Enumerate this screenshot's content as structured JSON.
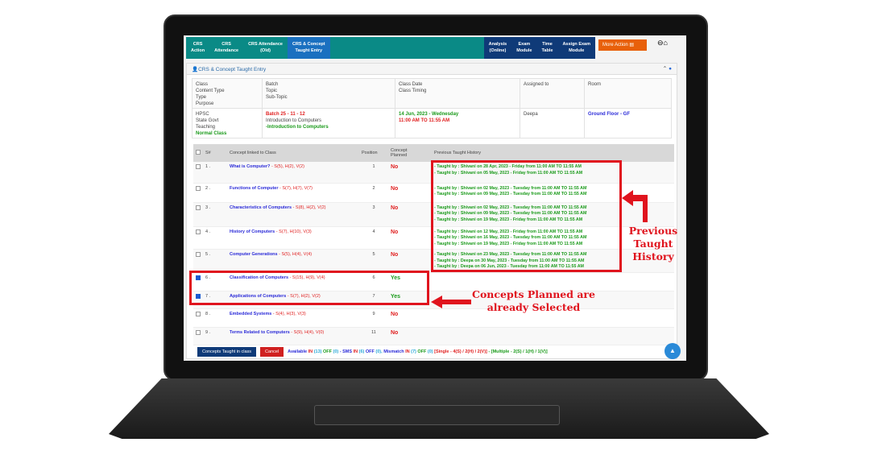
{
  "nav": {
    "items": [
      "CRS\nAction",
      "CRS\nAttendance",
      "CRS Attendance\n(Old)",
      "CRS & Concept\nTaught Entry"
    ],
    "right_items": [
      "Analysis\n(Online)",
      "Exam\nModule",
      "Time\nTable",
      "Assign Exam\nModule"
    ],
    "more_action": "More Action"
  },
  "panel": {
    "title": "CRS & Concept Taught Entry"
  },
  "info": {
    "headers": [
      "Class\nContent Type\nType\nPurpose",
      "Batch\nTopic\nSub-Topic",
      "Class Date\nClass Timing",
      "Assigned to",
      "Room"
    ],
    "class": [
      "HPSC",
      "State Govt",
      "Teaching"
    ],
    "purpose": "Normal Class",
    "batch": "Batch 25 - 11 - 12",
    "topic": "Introduction to Computers",
    "subtopic": "-Introduction to Computers",
    "date": "14 Jun, 2023 - Wednesday",
    "timing": "11:00 AM TO 11:55 AM",
    "assigned": "Deepa",
    "room": "Ground Floor - GF"
  },
  "table": {
    "headers": [
      "S#",
      "Concept linked to Class",
      "Position",
      "Concept\nPlanned",
      "Previous Taught History"
    ],
    "rows": [
      {
        "sn": "1 .",
        "concept": "What is Computer?",
        "shv": " - S(5), H(2), V(2)",
        "pos": "1",
        "planned": "No",
        "checked": false,
        "history": [
          "- Taught by : Shivani on 28 Apr, 2023 - Friday from 11:00 AM TO 11:55 AM",
          "- Taught by : Shivani on 05 May, 2023 - Friday from 11:00 AM TO 11:55 AM"
        ]
      },
      {
        "sn": "2 .",
        "concept": "Functions of Computer",
        "shv": " - S(7), H(7), V(7)",
        "pos": "2",
        "planned": "No",
        "checked": false,
        "history": [
          "- Taught by : Shivani on 02 May, 2023 - Tuesday from 11:00 AM TO 11:55 AM",
          "- Taught by : Shivani on 09 May, 2023 - Tuesday from 11:00 AM TO 11:55 AM"
        ]
      },
      {
        "sn": "3 .",
        "concept": "Characteristics of Computers",
        "shv": " - S(8), H(2), V(2)",
        "pos": "3",
        "planned": "No",
        "checked": false,
        "history": [
          "- Taught by : Shivani on 02 May, 2023 - Tuesday from 11:00 AM TO 11:55 AM",
          "- Taught by : Shivani on 09 May, 2023 - Tuesday from 11:00 AM TO 11:55 AM",
          "- Taught by : Shivani on 19 May, 2023 - Friday from 11:00 AM TO 11:55 AM"
        ]
      },
      {
        "sn": "4 .",
        "concept": "History of Computers",
        "shv": " - S(7), H(10), V(3)",
        "pos": "4",
        "planned": "No",
        "checked": false,
        "history": [
          "- Taught by : Shivani on 12 May, 2023 - Friday from 11:00 AM TO 11:55 AM",
          "- Taught by : Shivani on 16 May, 2023 - Tuesday from 11:00 AM TO 11:55 AM",
          "- Taught by : Shivani on 19 May, 2023 - Friday from 11:00 AM TO 11:55 AM"
        ]
      },
      {
        "sn": "5 .",
        "concept": "Computer Generations",
        "shv": " - S(5), H(4), V(4)",
        "pos": "5",
        "planned": "No",
        "checked": false,
        "history": [
          "- Taught by : Shivani on 23 May, 2023 - Tuesday from 11:00 AM TO 11:55 AM",
          "- Taught by : Deepa on 30 May, 2023 - Tuesday from 11:00 AM TO 11:55 AM",
          "- Taught by : Deepa on 06 Jun, 2023 - Tuesday from 11:00 AM TO 11:55 AM"
        ]
      },
      {
        "sn": "6 .",
        "concept": "Classification of Computers",
        "shv": " - S(15), H(9), V(4)",
        "pos": "6",
        "planned": "Yes",
        "checked": true,
        "history": []
      },
      {
        "sn": "7 .",
        "concept": "Applications of Computers",
        "shv": " - S(7), H(2), V(2)",
        "pos": "7",
        "planned": "Yes",
        "checked": true,
        "history": []
      },
      {
        "sn": "8 .",
        "concept": "Embedded Systems",
        "shv": " - S(4), H(3), V(3)",
        "pos": "9",
        "planned": "No",
        "checked": false,
        "history": []
      },
      {
        "sn": "9 .",
        "concept": "Terms Related to Computers",
        "shv": " - S(9), H(4), V(0)",
        "pos": "11",
        "planned": "No",
        "checked": false,
        "history": []
      }
    ]
  },
  "footer": {
    "taught_button": "Concepts Taught in class",
    "cancel_button": "Cancel",
    "status": [
      [
        "Available ",
        "#2a2ad8"
      ],
      [
        "IN ",
        "#e02020"
      ],
      [
        "(13) ",
        "#2aa8d8"
      ],
      [
        "OFF ",
        "#1a9a1a"
      ],
      [
        "(0) ",
        "#2aa8d8"
      ],
      [
        "- SMS ",
        "#2a2ad8"
      ],
      [
        "IN ",
        "#e02020"
      ],
      [
        "(6) ",
        "#2aa8d8"
      ],
      [
        "OFF ",
        "#2a2ad8"
      ],
      [
        "(0), ",
        "#2aa8d8"
      ],
      [
        "Mismatch ",
        "#2a2ad8"
      ],
      [
        "IN ",
        "#e02020"
      ],
      [
        "(7) ",
        "#2aa8d8"
      ],
      [
        "OFF ",
        "#1a9a1a"
      ],
      [
        "(0) ",
        "#2aa8d8"
      ],
      [
        "[Single - 4(S) / 2(H) / 2(V)] ",
        "#e02020"
      ],
      [
        "- [Multiple - 2(S) / 1(H) / 1(V)]",
        "#1a9a1a"
      ]
    ]
  },
  "annotations": {
    "history": "Previous\nTaught\nHistory",
    "planned": "Concepts Planned are\nalready Selected"
  },
  "colors": {
    "nav": "#0a8a86",
    "nav_active": "#1a70c0",
    "highlight": "#e0141e"
  }
}
